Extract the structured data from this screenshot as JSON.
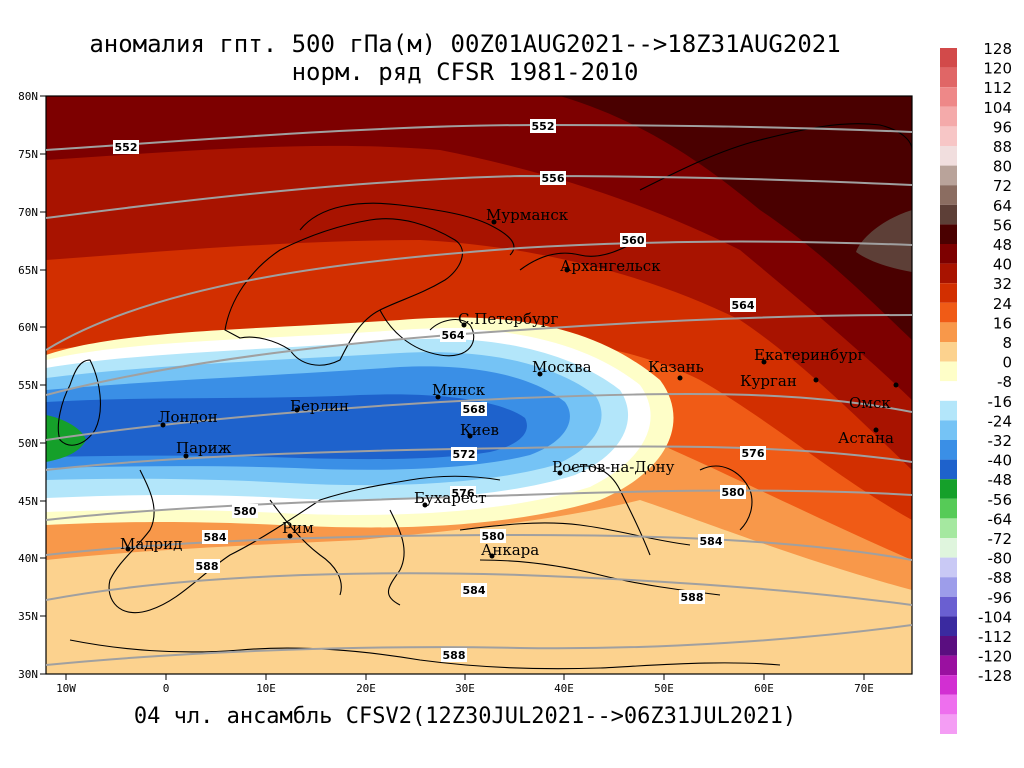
{
  "title_line1": "аномалия гпт. 500 гПа(м) 00Z01AUG2021-->18Z31AUG2021",
  "title_line2": "норм. ряд CFSR 1981-2010",
  "footer": "04 чл. ансамбль CFSV2(12Z30JUL2021-->06Z31JUL2021)",
  "lat_ticks": [
    "80N",
    "75N",
    "70N",
    "65N",
    "60N",
    "55N",
    "50N",
    "45N",
    "40N",
    "35N",
    "30N"
  ],
  "lon_ticks": [
    "10W",
    "0",
    "10E",
    "20E",
    "30E",
    "40E",
    "50E",
    "60E",
    "70E"
  ],
  "colorbar": [
    {
      "label": "128",
      "color": "#d24a4a"
    },
    {
      "label": "120",
      "color": "#e06666"
    },
    {
      "label": "112",
      "color": "#ee8888"
    },
    {
      "label": "104",
      "color": "#f4aaaa"
    },
    {
      "label": "96",
      "color": "#f7c6c6"
    },
    {
      "label": "88",
      "color": "#f1dede"
    },
    {
      "label": "80",
      "color": "#b9a39a"
    },
    {
      "label": "72",
      "color": "#8b6d61"
    },
    {
      "label": "64",
      "color": "#5d3f37"
    },
    {
      "label": "56",
      "color": "#4a0000"
    },
    {
      "label": "48",
      "color": "#7d0000"
    },
    {
      "label": "40",
      "color": "#a81300"
    },
    {
      "label": "32",
      "color": "#d22f00"
    },
    {
      "label": "24",
      "color": "#f05b16"
    },
    {
      "label": "16",
      "color": "#f8984a"
    },
    {
      "label": "8",
      "color": "#fcd28e"
    },
    {
      "label": "0",
      "color": "#fefec8"
    },
    {
      "label": "-8",
      "color": "#ffffff"
    },
    {
      "label": "-16",
      "color": "#b3e6fa"
    },
    {
      "label": "-24",
      "color": "#75c3f5"
    },
    {
      "label": "-32",
      "color": "#3a8fe6"
    },
    {
      "label": "-40",
      "color": "#1e62cc"
    },
    {
      "label": "-48",
      "color": "#15a02a"
    },
    {
      "label": "-56",
      "color": "#56cb57"
    },
    {
      "label": "-64",
      "color": "#a5e8a0"
    },
    {
      "label": "-72",
      "color": "#dff5dd"
    },
    {
      "label": "-80",
      "color": "#c9c9f5"
    },
    {
      "label": "-88",
      "color": "#9d9dea"
    },
    {
      "label": "-96",
      "color": "#6a5fd1"
    },
    {
      "label": "-104",
      "color": "#3a2aa0"
    },
    {
      "label": "-112",
      "color": "#5a0e80"
    },
    {
      "label": "-120",
      "color": "#9a10a0"
    },
    {
      "label": "-128",
      "color": "#d22fd2"
    },
    {
      "label": "",
      "color": "#ee6fee"
    },
    {
      "label": "",
      "color": "#f49df4"
    }
  ],
  "contours": [
    "552",
    "552",
    "556",
    "560",
    "564",
    "564",
    "568",
    "572",
    "576",
    "576",
    "580",
    "580",
    "580",
    "584",
    "584",
    "584",
    "588",
    "588",
    "588"
  ],
  "cities": [
    "Мурманск",
    "Архангельск",
    "С.Петербург",
    "Екатеринбург",
    "Курган",
    "Москва",
    "Казань",
    "Минск",
    "Омск",
    "Лондон",
    "Берлин",
    "Киев",
    "Астана",
    "Париж",
    "Ростов-на-Дону",
    "Бухарест",
    "Рим",
    "Мадрид",
    "Анкара"
  ]
}
